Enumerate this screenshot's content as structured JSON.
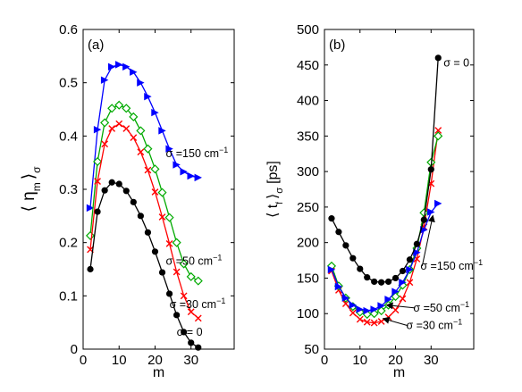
{
  "chart_data": [
    {
      "panel": "(a)",
      "type": "line",
      "xlabel": "m",
      "ylabel": "⟨ η",
      "ylabel_sub_m": "m",
      "ylabel_close": "⟩",
      "ylabel_sub_sigma": "σ",
      "xlim": [
        0,
        42
      ],
      "ylim": [
        0,
        0.6
      ],
      "xticks": [
        0,
        10,
        20,
        30
      ],
      "yticks": [
        0,
        0.1,
        0.2,
        0.3,
        0.4,
        0.5,
        0.6
      ],
      "xtick_labels": [
        "0",
        "10",
        "20",
        "30"
      ],
      "ytick_labels": [
        "0",
        "0.1",
        "0.2",
        "0.3",
        "0.4",
        "0.5",
        "0.6"
      ],
      "series": [
        {
          "color": "#0000ff",
          "marker": "triangle-right",
          "x": [
            2,
            4,
            6,
            8,
            10,
            12,
            14,
            16,
            18,
            20,
            22,
            24,
            26,
            28,
            30,
            32
          ],
          "y": [
            0.265,
            0.412,
            0.505,
            0.53,
            0.534,
            0.53,
            0.52,
            0.5,
            0.474,
            0.444,
            0.41,
            0.376,
            0.346,
            0.333,
            0.325,
            0.322
          ]
        },
        {
          "color": "#00aa00",
          "marker": "diamond-open",
          "x": [
            2,
            4,
            6,
            8,
            10,
            12,
            14,
            16,
            18,
            20,
            22,
            24,
            26,
            28,
            30,
            32
          ],
          "y": [
            0.213,
            0.352,
            0.425,
            0.452,
            0.458,
            0.452,
            0.436,
            0.41,
            0.376,
            0.338,
            0.294,
            0.247,
            0.2,
            0.16,
            0.136,
            0.128
          ]
        },
        {
          "color": "#ff0000",
          "marker": "x",
          "x": [
            2,
            4,
            6,
            8,
            10,
            12,
            14,
            16,
            18,
            20,
            22,
            24,
            26,
            28,
            30,
            32
          ],
          "y": [
            0.187,
            0.315,
            0.385,
            0.414,
            0.423,
            0.414,
            0.397,
            0.37,
            0.336,
            0.295,
            0.248,
            0.198,
            0.145,
            0.1,
            0.07,
            0.058
          ]
        },
        {
          "color": "#000000",
          "marker": "dot",
          "x": [
            2,
            4,
            6,
            8,
            10,
            12,
            14,
            16,
            18,
            20,
            22,
            24,
            26,
            28,
            30,
            32
          ],
          "y": [
            0.15,
            0.258,
            0.298,
            0.313,
            0.31,
            0.297,
            0.276,
            0.25,
            0.219,
            0.183,
            0.144,
            0.104,
            0.064,
            0.032,
            0.012,
            0.003
          ]
        }
      ],
      "annotations": [
        {
          "text": "σ =150 cm",
          "sup": "−1",
          "x": 23,
          "y": 0.36
        },
        {
          "text": "σ =50 cm",
          "sup": "−1",
          "x": 23,
          "y": 0.158
        },
        {
          "text": "σ =30 cm",
          "sup": "−1",
          "x": 24,
          "y": 0.077
        },
        {
          "text": "σ = 0",
          "x": 26,
          "y": 0.025
        }
      ]
    },
    {
      "panel": "(b)",
      "type": "line",
      "xlabel": "m",
      "ylabel": "⟨ t",
      "ylabel_sub_f": "f",
      "ylabel_close": "⟩",
      "ylabel_sub_sigma": "σ",
      "ylabel_unit": "[ps]",
      "xlim": [
        0,
        42
      ],
      "ylim": [
        50,
        500
      ],
      "xticks": [
        0,
        10,
        20,
        30
      ],
      "yticks": [
        50,
        100,
        150,
        200,
        250,
        300,
        350,
        400,
        450,
        500
      ],
      "xtick_labels": [
        "0",
        "10",
        "20",
        "30"
      ],
      "ytick_labels": [
        "50",
        "100",
        "150",
        "200",
        "250",
        "300",
        "350",
        "400",
        "450",
        "500"
      ],
      "series": [
        {
          "color": "#ff0000",
          "marker": "x",
          "x": [
            2,
            4,
            6,
            8,
            10,
            12,
            14,
            16,
            18,
            20,
            22,
            24,
            26,
            28,
            30,
            32
          ],
          "y": [
            160,
            133,
            114,
            101,
            92,
            88,
            87,
            89,
            95,
            105,
            121,
            144,
            177,
            222,
            283,
            358
          ]
        },
        {
          "color": "#00aa00",
          "marker": "diamond-open",
          "x": [
            2,
            4,
            6,
            8,
            10,
            12,
            14,
            16,
            18,
            20,
            22,
            24,
            26,
            28,
            30,
            32
          ],
          "y": [
            167,
            139,
            122,
            110,
            102,
            99,
            100,
            104,
            112,
            124,
            140,
            162,
            192,
            242,
            313,
            350
          ]
        },
        {
          "color": "#0000ff",
          "marker": "triangle-right",
          "x": [
            2,
            4,
            6,
            8,
            10,
            12,
            14,
            16,
            18,
            20,
            22,
            24,
            26,
            28,
            30,
            32
          ],
          "y": [
            162,
            138,
            122,
            112,
            106,
            104,
            106,
            111,
            120,
            131,
            144,
            162,
            186,
            218,
            243,
            255
          ]
        },
        {
          "color": "#000000",
          "marker": "dot",
          "x": [
            2,
            4,
            6,
            8,
            10,
            12,
            14,
            16,
            18,
            20,
            22,
            24,
            26,
            28,
            30,
            32
          ],
          "y": [
            234,
            215,
            196,
            178,
            163,
            151,
            145,
            144,
            145,
            150,
            160,
            176,
            198,
            232,
            303,
            460
          ]
        }
      ],
      "annotations": [
        {
          "text": "σ = 0",
          "x": 33.5,
          "y": 448
        },
        {
          "text": "σ =150 cm",
          "sup": "−1",
          "x": 27,
          "y": 162,
          "arrow_to": [
            30.5,
            238
          ]
        },
        {
          "text": "σ =50 cm",
          "sup": "−1",
          "x": 25,
          "y": 103,
          "arrow_to": [
            17.5,
            112
          ]
        },
        {
          "text": "σ =30 cm",
          "sup": "−1",
          "x": 23,
          "y": 78,
          "arrow_to": [
            16.5,
            93
          ]
        }
      ]
    }
  ]
}
